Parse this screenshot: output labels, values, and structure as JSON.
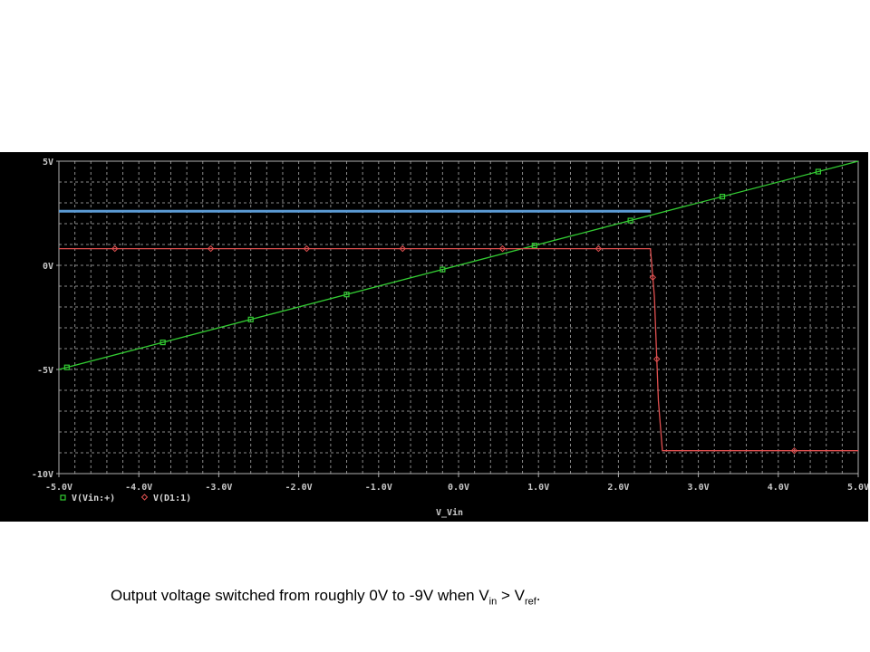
{
  "chart_data": {
    "type": "line",
    "xlabel": "V_Vin",
    "x_tick_labels": [
      "-5.0V",
      "-4.0V",
      "-3.0V",
      "-2.0V",
      "-1.0V",
      "0.0V",
      "1.0V",
      "2.0V",
      "3.0V",
      "4.0V",
      "5.0V"
    ],
    "y_tick_labels": [
      "5V",
      "0V",
      "-5V",
      "-10V"
    ],
    "x_ticks": [
      -5,
      -4,
      -3,
      -2,
      -1,
      0,
      1,
      2,
      3,
      4,
      5
    ],
    "y_ticks": [
      5,
      0,
      -5,
      -10
    ],
    "xlim": [
      -5.0,
      5.0
    ],
    "ylim": [
      -10,
      5
    ],
    "grid": true,
    "legend_position": "bottom-left",
    "series": [
      {
        "name": "V(Vin:+)",
        "color": "#33cc33",
        "marker": "square",
        "x": [
          -5.0,
          5.0
        ],
        "y": [
          -5.0,
          5.0
        ],
        "marker_x": [
          -4.9,
          -3.7,
          -2.6,
          -1.4,
          -0.2,
          0.95,
          2.15,
          3.3,
          4.5
        ]
      },
      {
        "name": "V(D1:1)",
        "color": "#e05050",
        "marker": "diamond",
        "x": [
          -5.0,
          2.4,
          2.45,
          2.5,
          2.55,
          5.0
        ],
        "y": [
          0.8,
          0.8,
          -1.5,
          -6.5,
          -8.9,
          -8.9
        ],
        "marker_x": [
          -4.3,
          -3.1,
          -1.9,
          -0.7,
          0.55,
          1.75,
          2.43,
          2.48,
          4.2
        ]
      },
      {
        "color": "#5b9bd5",
        "x": [
          -5.0,
          2.4
        ],
        "y": [
          2.6,
          2.6
        ]
      }
    ]
  },
  "caption": {
    "main": "Output voltage switched from roughly 0V to -9V when V",
    "sub1": "in",
    "middle": " > V",
    "sub2": "ref",
    "end": "."
  }
}
